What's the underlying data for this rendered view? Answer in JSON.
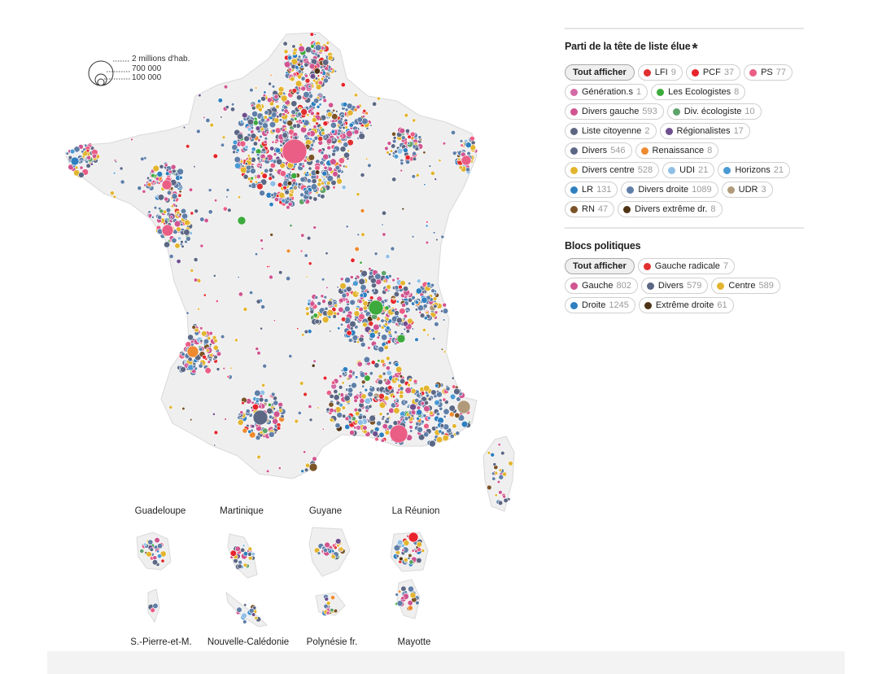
{
  "map": {
    "size_legend": [
      "2 millions d'hab.",
      "700 000",
      "100 000"
    ],
    "territories": [
      {
        "id": "guadeloupe",
        "label": "Guadeloupe"
      },
      {
        "id": "martinique",
        "label": "Martinique"
      },
      {
        "id": "guyane",
        "label": "Guyane"
      },
      {
        "id": "reunion",
        "label": "La Réunion"
      },
      {
        "id": "spm",
        "label": "S.-Pierre-et-M."
      },
      {
        "id": "nc",
        "label": "Nouvelle-Calédonie"
      },
      {
        "id": "polynesie",
        "label": "Polynésie fr."
      },
      {
        "id": "mayotte",
        "label": "Mayotte"
      }
    ]
  },
  "parties": {
    "title": "Parti de la tête de liste élue",
    "title_mark": "*",
    "all_label": "Tout afficher",
    "items": [
      {
        "label": "LFI",
        "count": "9",
        "color": "#e0302f"
      },
      {
        "label": "PCF",
        "count": "37",
        "color": "#e8232b"
      },
      {
        "label": "PS",
        "count": "77",
        "color": "#ea5e86"
      },
      {
        "label": "Génération.s",
        "count": "1",
        "color": "#d46aa6"
      },
      {
        "label": "Les Ecologistes",
        "count": "8",
        "color": "#3caa3c"
      },
      {
        "label": "Divers gauche",
        "count": "593",
        "color": "#d0548f"
      },
      {
        "label": "Div. écologiste",
        "count": "10",
        "color": "#5ea36a"
      },
      {
        "label": "Liste citoyenne",
        "count": "2",
        "color": "#5d6680"
      },
      {
        "label": "Régionalistes",
        "count": "17",
        "color": "#6e4f8e"
      },
      {
        "label": "Divers",
        "count": "546",
        "color": "#5b6784"
      },
      {
        "label": "Renaissance",
        "count": "8",
        "color": "#ef8a2e"
      },
      {
        "label": "Divers centre",
        "count": "528",
        "color": "#e3b52f"
      },
      {
        "label": "UDI",
        "count": "21",
        "color": "#8fbfe6"
      },
      {
        "label": "Horizons",
        "count": "21",
        "color": "#4a9ad3"
      },
      {
        "label": "LR",
        "count": "131",
        "color": "#2d7fc0"
      },
      {
        "label": "Divers droite",
        "count": "1089",
        "color": "#5f7fa8"
      },
      {
        "label": "UDR",
        "count": "3",
        "color": "#b09a7a"
      },
      {
        "label": "RN",
        "count": "47",
        "color": "#7b5428"
      },
      {
        "label": "Divers extrême dr.",
        "count": "8",
        "color": "#4e3414"
      }
    ]
  },
  "blocs": {
    "title": "Blocs politiques",
    "all_label": "Tout afficher",
    "items": [
      {
        "label": "Gauche radicale",
        "count": "7",
        "color": "#e0302f"
      },
      {
        "label": "Gauche",
        "count": "802",
        "color": "#d0548f"
      },
      {
        "label": "Divers",
        "count": "579",
        "color": "#5b6784"
      },
      {
        "label": "Centre",
        "count": "589",
        "color": "#e3b52f"
      },
      {
        "label": "Droite",
        "count": "1245",
        "color": "#2d7fc0"
      },
      {
        "label": "Extrême droite",
        "count": "61",
        "color": "#4e3414"
      }
    ]
  }
}
